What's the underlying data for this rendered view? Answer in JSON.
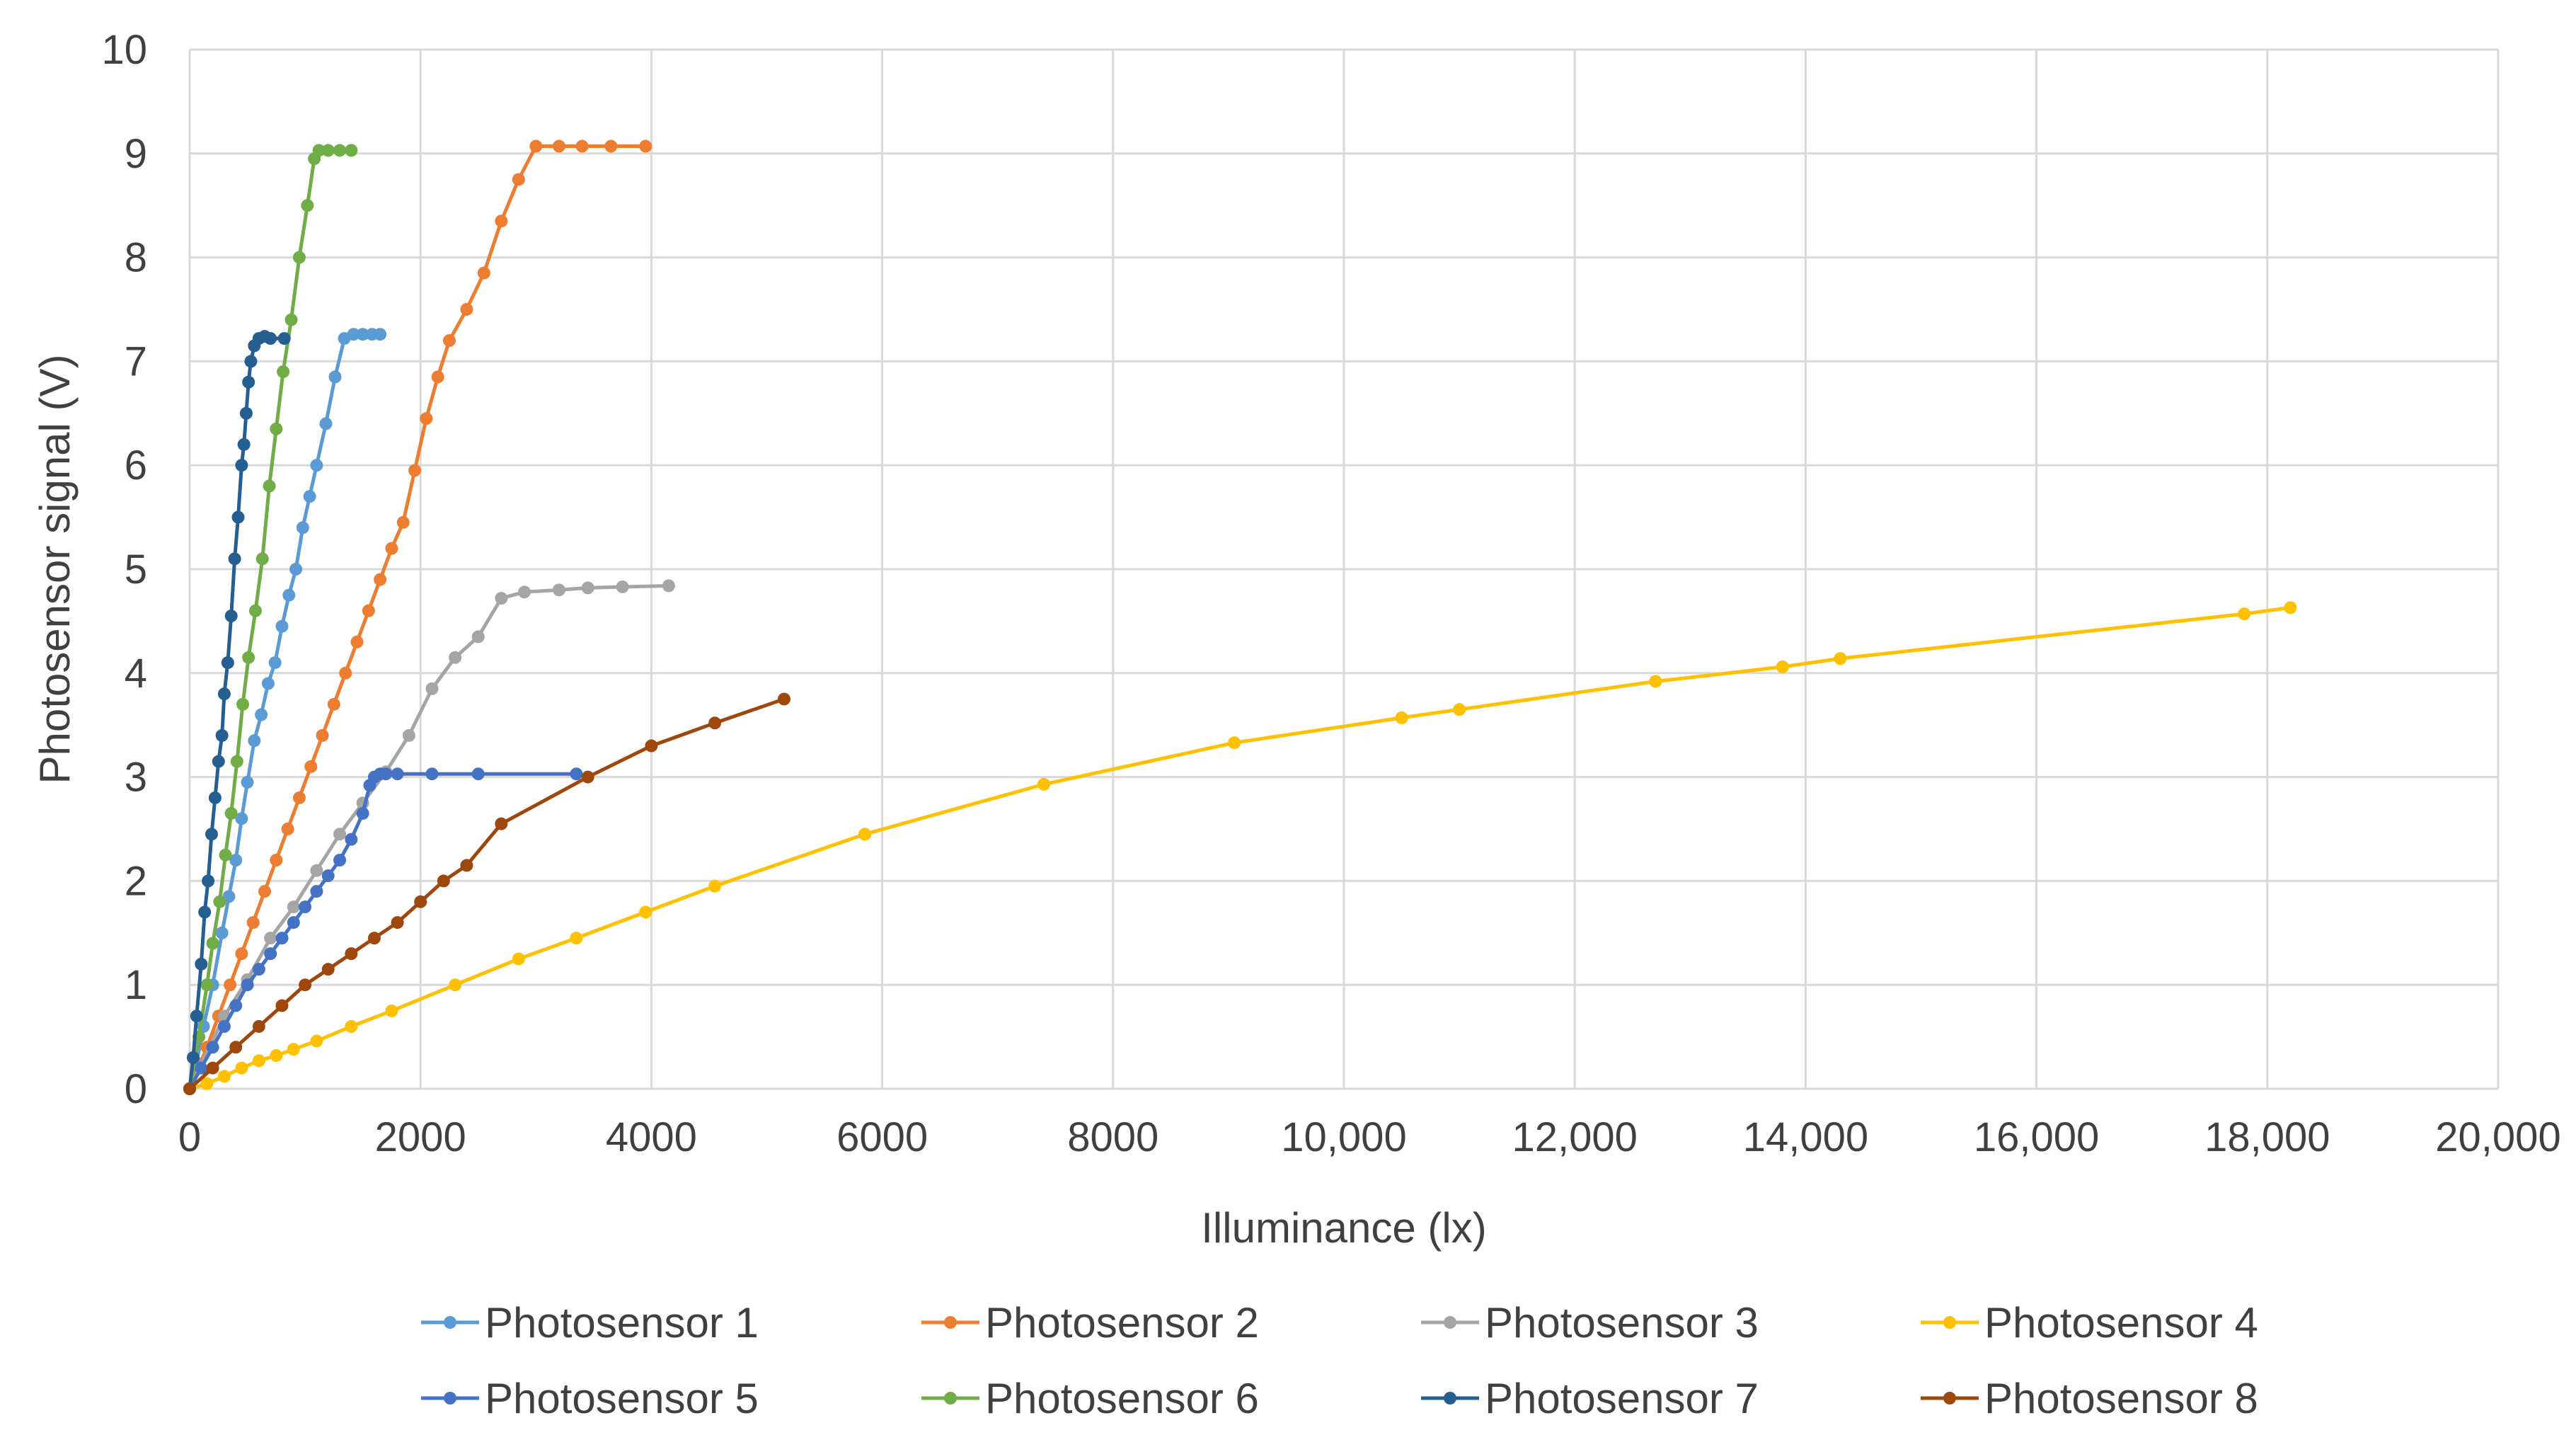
{
  "chart_data": {
    "type": "line",
    "title": "",
    "xlabel": "Illuminance (lx)",
    "ylabel": "Photosensor signal (V)",
    "xlim": [
      0,
      20000
    ],
    "ylim": [
      0,
      10
    ],
    "x_ticks": [
      0,
      2000,
      4000,
      6000,
      8000,
      10000,
      12000,
      14000,
      16000,
      18000,
      20000
    ],
    "x_tick_labels": [
      "0",
      "2000",
      "4000",
      "6000",
      "8000",
      "10,000",
      "12,000",
      "14,000",
      "16,000",
      "18,000",
      "20,000"
    ],
    "y_ticks": [
      0,
      1,
      2,
      3,
      4,
      5,
      6,
      7,
      8,
      9,
      10
    ],
    "y_tick_labels": [
      "0",
      "1",
      "2",
      "3",
      "4",
      "5",
      "6",
      "7",
      "8",
      "9",
      "10"
    ],
    "grid": true,
    "legend_position": "bottom",
    "series": [
      {
        "name": "Photosensor 1",
        "color": "#5B9BD5",
        "points": [
          [
            0,
            0
          ],
          [
            60,
            0.25
          ],
          [
            120,
            0.6
          ],
          [
            200,
            1.0
          ],
          [
            280,
            1.5
          ],
          [
            340,
            1.85
          ],
          [
            400,
            2.2
          ],
          [
            450,
            2.6
          ],
          [
            500,
            2.95
          ],
          [
            560,
            3.35
          ],
          [
            620,
            3.6
          ],
          [
            680,
            3.9
          ],
          [
            740,
            4.1
          ],
          [
            800,
            4.45
          ],
          [
            860,
            4.75
          ],
          [
            920,
            5.0
          ],
          [
            980,
            5.4
          ],
          [
            1040,
            5.7
          ],
          [
            1100,
            6.0
          ],
          [
            1180,
            6.4
          ],
          [
            1260,
            6.85
          ],
          [
            1340,
            7.22
          ],
          [
            1420,
            7.26
          ],
          [
            1500,
            7.26
          ],
          [
            1580,
            7.26
          ],
          [
            1650,
            7.26
          ]
        ]
      },
      {
        "name": "Photosensor 2",
        "color": "#ED7D31",
        "points": [
          [
            0,
            0
          ],
          [
            150,
            0.4
          ],
          [
            250,
            0.7
          ],
          [
            350,
            1.0
          ],
          [
            450,
            1.3
          ],
          [
            550,
            1.6
          ],
          [
            650,
            1.9
          ],
          [
            750,
            2.2
          ],
          [
            850,
            2.5
          ],
          [
            950,
            2.8
          ],
          [
            1050,
            3.1
          ],
          [
            1150,
            3.4
          ],
          [
            1250,
            3.7
          ],
          [
            1350,
            4.0
          ],
          [
            1450,
            4.3
          ],
          [
            1550,
            4.6
          ],
          [
            1650,
            4.9
          ],
          [
            1750,
            5.2
          ],
          [
            1850,
            5.45
          ],
          [
            1950,
            5.95
          ],
          [
            2050,
            6.45
          ],
          [
            2150,
            6.85
          ],
          [
            2250,
            7.2
          ],
          [
            2400,
            7.5
          ],
          [
            2550,
            7.85
          ],
          [
            2700,
            8.35
          ],
          [
            2850,
            8.75
          ],
          [
            3000,
            9.07
          ],
          [
            3200,
            9.07
          ],
          [
            3400,
            9.07
          ],
          [
            3650,
            9.07
          ],
          [
            3950,
            9.07
          ]
        ]
      },
      {
        "name": "Photosensor 3",
        "color": "#A5A5A5",
        "points": [
          [
            0,
            0
          ],
          [
            300,
            0.7
          ],
          [
            500,
            1.05
          ],
          [
            700,
            1.45
          ],
          [
            900,
            1.75
          ],
          [
            1100,
            2.1
          ],
          [
            1300,
            2.45
          ],
          [
            1500,
            2.75
          ],
          [
            1700,
            3.05
          ],
          [
            1900,
            3.4
          ],
          [
            2100,
            3.85
          ],
          [
            2300,
            4.15
          ],
          [
            2500,
            4.35
          ],
          [
            2700,
            4.72
          ],
          [
            2900,
            4.78
          ],
          [
            3200,
            4.8
          ],
          [
            3450,
            4.82
          ],
          [
            3750,
            4.83
          ],
          [
            4150,
            4.84
          ]
        ]
      },
      {
        "name": "Photosensor 4",
        "color": "#FFC000",
        "points": [
          [
            0,
            0
          ],
          [
            150,
            0.05
          ],
          [
            300,
            0.12
          ],
          [
            450,
            0.2
          ],
          [
            600,
            0.27
          ],
          [
            750,
            0.32
          ],
          [
            900,
            0.38
          ],
          [
            1100,
            0.46
          ],
          [
            1400,
            0.6
          ],
          [
            1750,
            0.75
          ],
          [
            2300,
            1.0
          ],
          [
            2850,
            1.25
          ],
          [
            3350,
            1.45
          ],
          [
            3950,
            1.7
          ],
          [
            4550,
            1.95
          ],
          [
            5850,
            2.45
          ],
          [
            7400,
            2.93
          ],
          [
            9050,
            3.33
          ],
          [
            10500,
            3.57
          ],
          [
            11000,
            3.65
          ],
          [
            12700,
            3.92
          ],
          [
            13800,
            4.06
          ],
          [
            14300,
            4.14
          ],
          [
            17800,
            4.57
          ],
          [
            18200,
            4.63
          ]
        ]
      },
      {
        "name": "Photosensor 5",
        "color": "#4472C4",
        "points": [
          [
            0,
            0
          ],
          [
            100,
            0.2
          ],
          [
            200,
            0.4
          ],
          [
            300,
            0.6
          ],
          [
            400,
            0.8
          ],
          [
            500,
            1.0
          ],
          [
            600,
            1.15
          ],
          [
            700,
            1.3
          ],
          [
            800,
            1.45
          ],
          [
            900,
            1.6
          ],
          [
            1000,
            1.75
          ],
          [
            1100,
            1.9
          ],
          [
            1200,
            2.05
          ],
          [
            1300,
            2.2
          ],
          [
            1400,
            2.4
          ],
          [
            1500,
            2.65
          ],
          [
            1560,
            2.92
          ],
          [
            1600,
            3.0
          ],
          [
            1650,
            3.03
          ],
          [
            1700,
            3.03
          ],
          [
            1800,
            3.03
          ],
          [
            2100,
            3.03
          ],
          [
            2500,
            3.03
          ],
          [
            3350,
            3.03
          ]
        ]
      },
      {
        "name": "Photosensor 6",
        "color": "#70AD47",
        "points": [
          [
            0,
            0
          ],
          [
            80,
            0.5
          ],
          [
            150,
            1.0
          ],
          [
            200,
            1.4
          ],
          [
            260,
            1.8
          ],
          [
            310,
            2.25
          ],
          [
            360,
            2.65
          ],
          [
            410,
            3.15
          ],
          [
            460,
            3.7
          ],
          [
            510,
            4.15
          ],
          [
            570,
            4.6
          ],
          [
            630,
            5.1
          ],
          [
            690,
            5.8
          ],
          [
            750,
            6.35
          ],
          [
            810,
            6.9
          ],
          [
            880,
            7.4
          ],
          [
            950,
            8.0
          ],
          [
            1020,
            8.5
          ],
          [
            1080,
            8.95
          ],
          [
            1120,
            9.03
          ],
          [
            1200,
            9.03
          ],
          [
            1300,
            9.03
          ],
          [
            1400,
            9.03
          ]
        ]
      },
      {
        "name": "Photosensor 7",
        "color": "#255E91",
        "points": [
          [
            0,
            0
          ],
          [
            30,
            0.3
          ],
          [
            60,
            0.7
          ],
          [
            100,
            1.2
          ],
          [
            130,
            1.7
          ],
          [
            160,
            2.0
          ],
          [
            190,
            2.45
          ],
          [
            220,
            2.8
          ],
          [
            250,
            3.15
          ],
          [
            280,
            3.4
          ],
          [
            300,
            3.8
          ],
          [
            330,
            4.1
          ],
          [
            360,
            4.55
          ],
          [
            390,
            5.1
          ],
          [
            420,
            5.5
          ],
          [
            450,
            6.0
          ],
          [
            470,
            6.2
          ],
          [
            490,
            6.5
          ],
          [
            510,
            6.8
          ],
          [
            530,
            7.0
          ],
          [
            560,
            7.15
          ],
          [
            600,
            7.22
          ],
          [
            650,
            7.24
          ],
          [
            700,
            7.22
          ],
          [
            820,
            7.22
          ]
        ]
      },
      {
        "name": "Photosensor 8",
        "color": "#9E480E",
        "points": [
          [
            0,
            0
          ],
          [
            200,
            0.2
          ],
          [
            400,
            0.4
          ],
          [
            600,
            0.6
          ],
          [
            800,
            0.8
          ],
          [
            1000,
            1.0
          ],
          [
            1200,
            1.15
          ],
          [
            1400,
            1.3
          ],
          [
            1600,
            1.45
          ],
          [
            1800,
            1.6
          ],
          [
            2000,
            1.8
          ],
          [
            2200,
            2.0
          ],
          [
            2400,
            2.15
          ],
          [
            2700,
            2.55
          ],
          [
            3450,
            3.0
          ],
          [
            4000,
            3.3
          ],
          [
            4550,
            3.52
          ],
          [
            5150,
            3.75
          ]
        ]
      }
    ]
  }
}
